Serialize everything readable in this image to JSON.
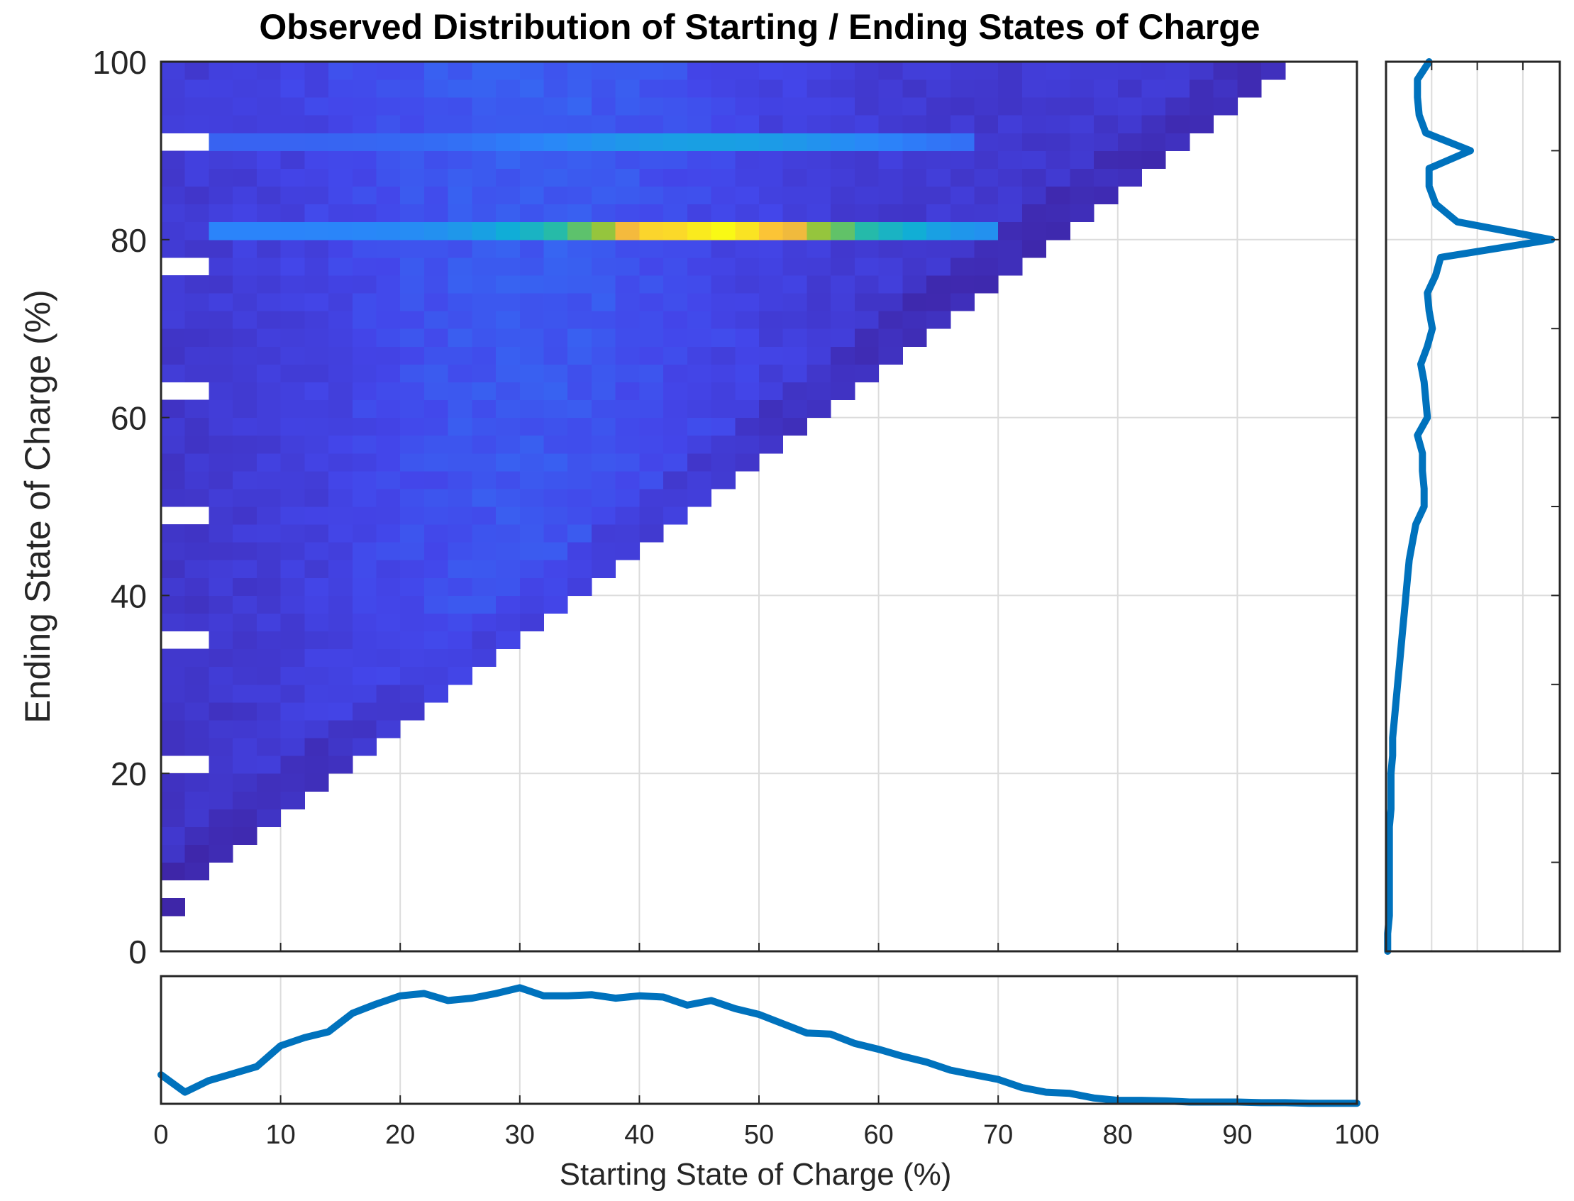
{
  "chart_data": {
    "title": "Observed Distribution of Starting / Ending States of Charge",
    "heatmap": {
      "type": "heatmap",
      "xlabel": "Starting State of Charge (%)",
      "ylabel": "Ending State of Charge (%)",
      "xlim": [
        0,
        100
      ],
      "ylim": [
        0,
        100
      ],
      "bin_width": 2,
      "x_ticks": [
        "0",
        "10",
        "20",
        "30",
        "40",
        "50",
        "60",
        "70",
        "80",
        "90",
        "100"
      ],
      "y_ticks": [
        "0",
        "20",
        "40",
        "60",
        "80",
        "100"
      ],
      "colormap": "parula",
      "grid": true
    },
    "marginal_x": {
      "type": "line",
      "description": "Distribution of starting state of charge (relative frequency)",
      "x": [
        0,
        2,
        4,
        6,
        8,
        10,
        12,
        14,
        16,
        18,
        20,
        22,
        24,
        26,
        28,
        30,
        32,
        34,
        36,
        38,
        40,
        42,
        44,
        46,
        48,
        50,
        52,
        54,
        56,
        58,
        60,
        62,
        64,
        66,
        68,
        70,
        72,
        74,
        76,
        78,
        80,
        82,
        84,
        86,
        88,
        90,
        92,
        94,
        96,
        98,
        100
      ],
      "values": [
        0.25,
        0.1,
        0.2,
        0.26,
        0.32,
        0.5,
        0.57,
        0.62,
        0.78,
        0.86,
        0.93,
        0.95,
        0.89,
        0.91,
        0.95,
        1.0,
        0.93,
        0.93,
        0.94,
        0.91,
        0.93,
        0.92,
        0.85,
        0.89,
        0.82,
        0.77,
        0.69,
        0.61,
        0.6,
        0.52,
        0.47,
        0.41,
        0.36,
        0.29,
        0.25,
        0.21,
        0.14,
        0.1,
        0.09,
        0.05,
        0.03,
        0.03,
        0.025,
        0.015,
        0.015,
        0.015,
        0.01,
        0.01,
        0.005,
        0.005,
        0.005
      ],
      "ylim": [
        0,
        1.1
      ]
    },
    "marginal_y": {
      "type": "line",
      "description": "Distribution of ending state of charge (relative frequency)",
      "y": [
        0,
        2,
        4,
        6,
        8,
        10,
        12,
        14,
        16,
        18,
        20,
        22,
        24,
        26,
        28,
        30,
        32,
        34,
        36,
        38,
        40,
        42,
        44,
        46,
        48,
        50,
        52,
        54,
        56,
        58,
        60,
        62,
        64,
        66,
        68,
        70,
        72,
        74,
        76,
        78,
        80,
        82,
        84,
        86,
        88,
        90,
        92,
        94,
        96,
        98,
        100
      ],
      "values": [
        0.01,
        0.01,
        0.02,
        0.02,
        0.02,
        0.02,
        0.02,
        0.02,
        0.03,
        0.03,
        0.03,
        0.04,
        0.04,
        0.05,
        0.06,
        0.07,
        0.08,
        0.09,
        0.1,
        0.11,
        0.12,
        0.13,
        0.14,
        0.16,
        0.18,
        0.23,
        0.23,
        0.22,
        0.22,
        0.19,
        0.25,
        0.24,
        0.23,
        0.21,
        0.25,
        0.28,
        0.26,
        0.25,
        0.3,
        0.33,
        1.0,
        0.43,
        0.3,
        0.26,
        0.26,
        0.51,
        0.24,
        0.2,
        0.19,
        0.19,
        0.26
      ],
      "xlim": [
        0,
        1.05
      ]
    }
  }
}
